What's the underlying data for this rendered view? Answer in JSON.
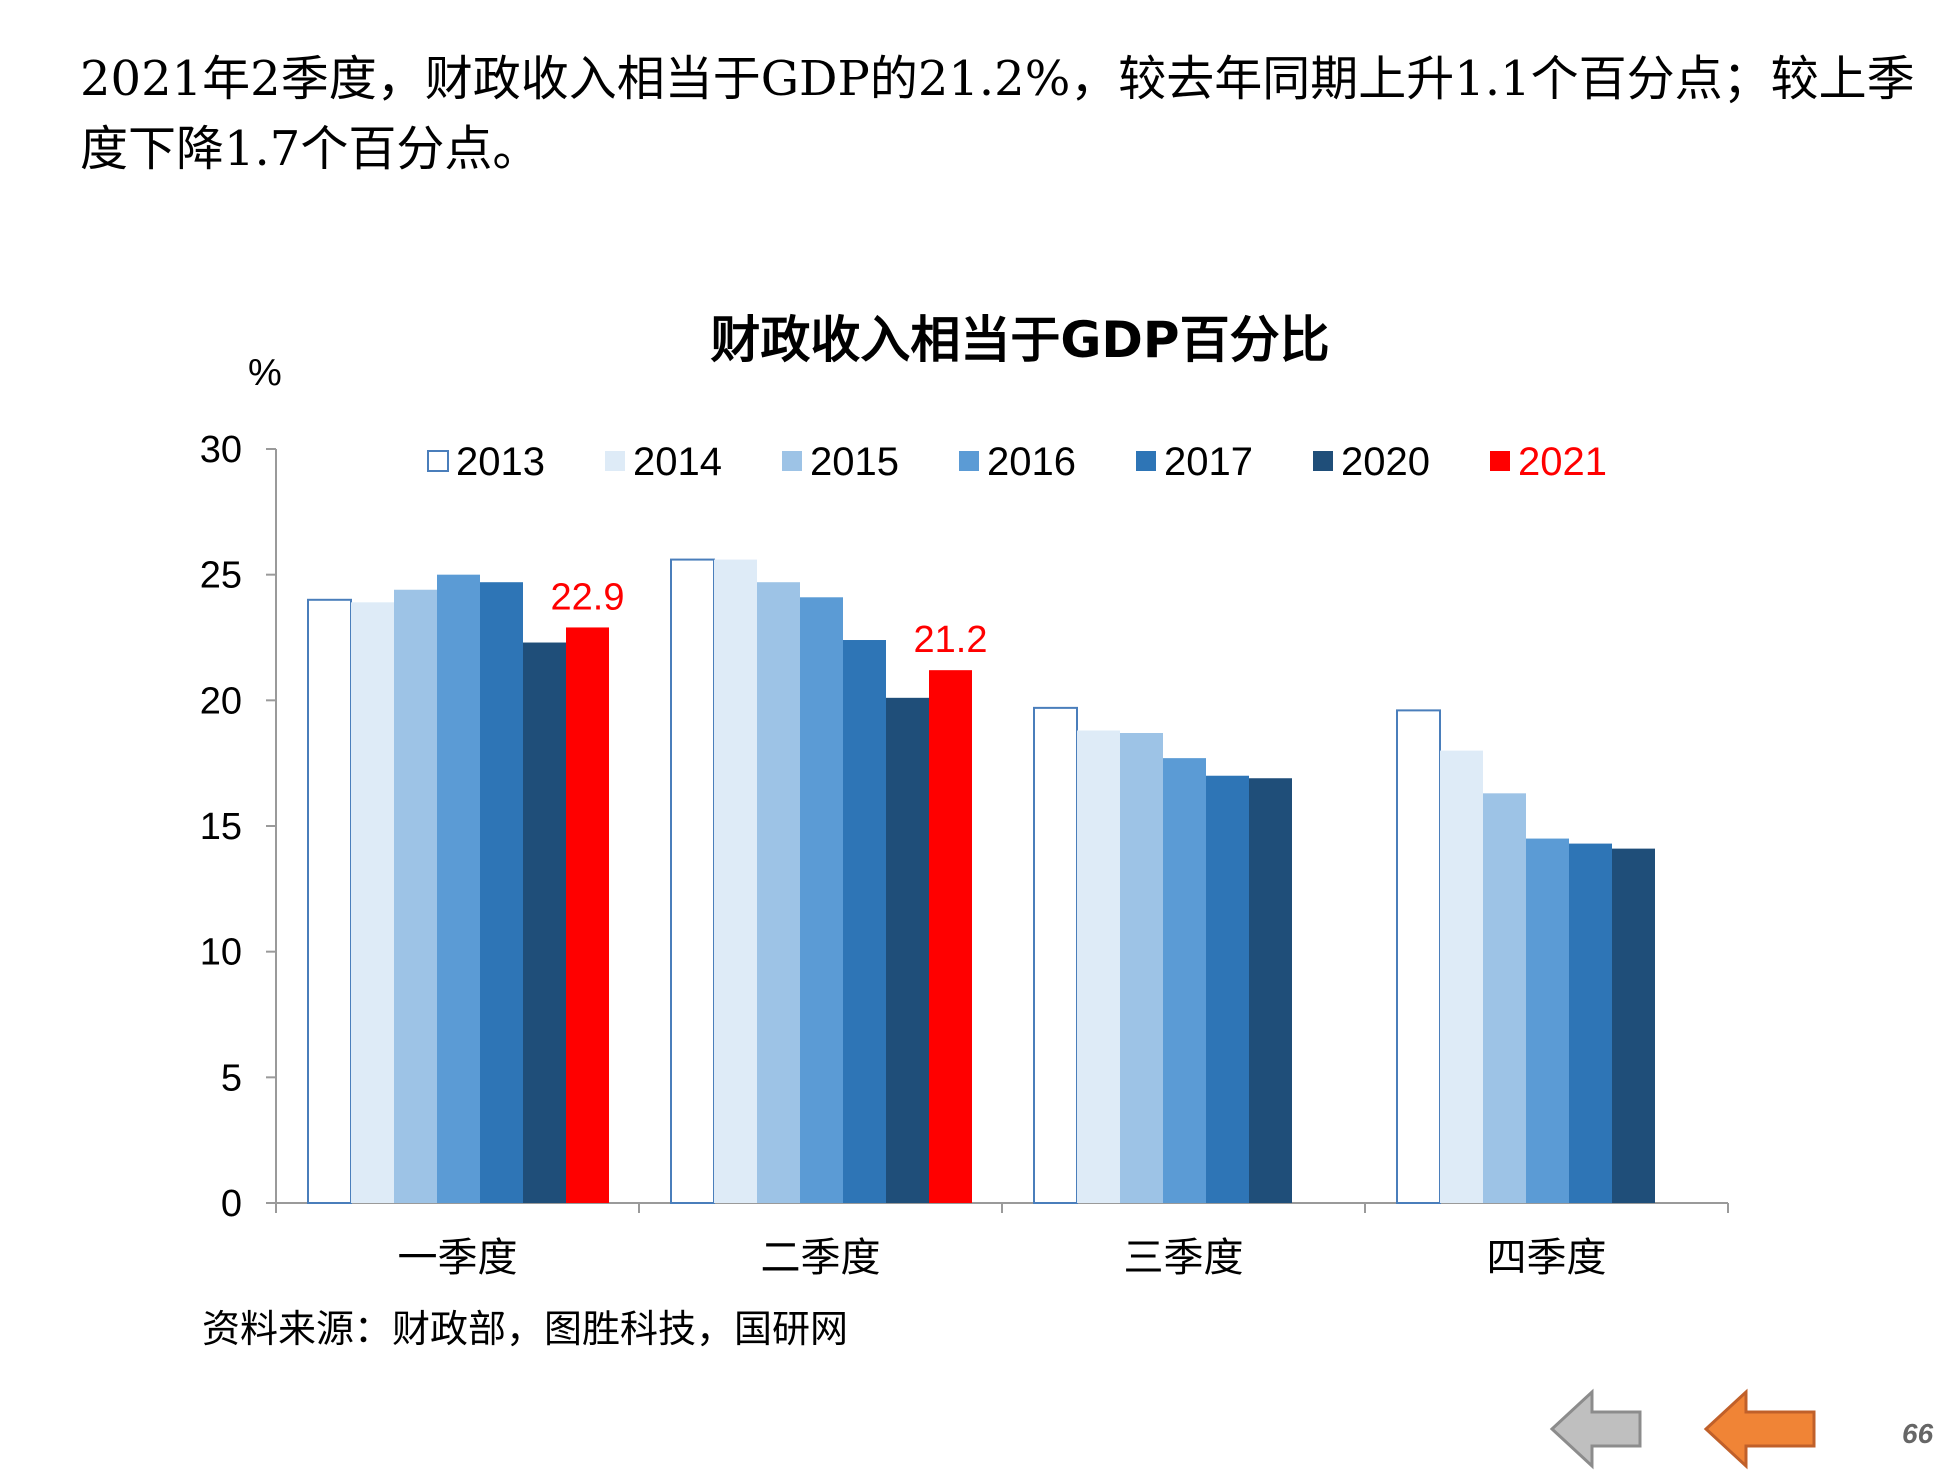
{
  "headline": "2021年2季度，财政收入相当于GDP的21.2%，较去年同期上升1.1个百分点；较上季度下降1.7个百分点。",
  "source": "资料来源：财政部，图胜科技，国研网",
  "page_number": "66",
  "nav": {
    "prev_icon": "left-arrow-icon",
    "next_icon": "left-arrow-icon",
    "prev_color": "#bfbfbf",
    "next_color": "#f08436"
  },
  "chart_data": {
    "type": "bar",
    "title": "财政收入相当于GDP百分比",
    "ylabel": "%",
    "xlabel": "",
    "ylim": [
      0,
      30
    ],
    "yticks": [
      "0",
      "5",
      "10",
      "15",
      "20",
      "25",
      "30"
    ],
    "categories": [
      "一季度",
      "二季度",
      "三季度",
      "四季度"
    ],
    "legend_position": "top",
    "grid": false,
    "series": [
      {
        "name": "2013",
        "color": "#ffffff",
        "stroke": "#4a7ebb",
        "values": [
          24.0,
          25.6,
          19.7,
          19.6
        ]
      },
      {
        "name": "2014",
        "color": "#deebf7",
        "values": [
          23.9,
          25.6,
          18.8,
          18.0
        ]
      },
      {
        "name": "2015",
        "color": "#9dc3e6",
        "values": [
          24.4,
          24.7,
          18.7,
          16.3
        ]
      },
      {
        "name": "2016",
        "color": "#5b9bd5",
        "values": [
          25.0,
          24.1,
          17.7,
          14.5
        ]
      },
      {
        "name": "2017",
        "color": "#2e75b6",
        "values": [
          24.7,
          22.4,
          17.0,
          14.3
        ]
      },
      {
        "name": "2020",
        "color": "#1f4e79",
        "values": [
          22.3,
          20.1,
          16.9,
          14.1
        ]
      },
      {
        "name": "2021",
        "color": "#ff0000",
        "legend_text_color": "#ff0000",
        "values": [
          22.9,
          21.2,
          null,
          null
        ]
      }
    ],
    "data_labels": [
      {
        "series": "2021",
        "category": "一季度",
        "text": "22.9",
        "color": "#ff0000"
      },
      {
        "series": "2021",
        "category": "二季度",
        "text": "21.2",
        "color": "#ff0000"
      }
    ]
  }
}
